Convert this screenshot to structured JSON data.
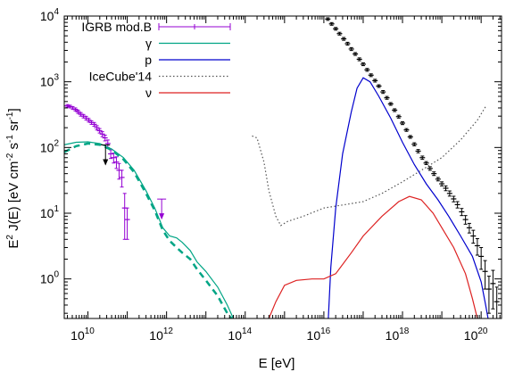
{
  "chart_data": {
    "type": "line",
    "title": "",
    "xlabel": "E  [eV]",
    "ylabel_main": "E",
    "ylabel_sup": "2",
    "ylabel_j": " J(E)  [eV cm",
    "ylabel_cm_exp": "-2",
    "ylabel_s": " s",
    "ylabel_s_exp": "-1",
    "ylabel_sr": " sr",
    "ylabel_sr_exp": "-1",
    "ylabel_close": "]",
    "x_scale": "log",
    "y_scale": "log",
    "xlim": [
      2500000000.0,
      3.3e+20
    ],
    "ylim": [
      0.25,
      10000
    ],
    "legend_position": "top-left",
    "x_ticks": [
      {
        "base": "10",
        "exp": "10",
        "value": 10000000000.0
      },
      {
        "base": "10",
        "exp": "12",
        "value": 1000000000000.0
      },
      {
        "base": "10",
        "exp": "14",
        "value": 100000000000000.0
      },
      {
        "base": "10",
        "exp": "16",
        "value": 1e+16
      },
      {
        "base": "10",
        "exp": "18",
        "value": 1e+18
      },
      {
        "base": "10",
        "exp": "20",
        "value": 1e+20
      }
    ],
    "y_ticks": [
      {
        "base": "10",
        "exp": "0",
        "value": 1
      },
      {
        "base": "10",
        "exp": "1",
        "value": 10
      },
      {
        "base": "10",
        "exp": "2",
        "value": 100
      },
      {
        "base": "10",
        "exp": "3",
        "value": 1000
      },
      {
        "base": "10",
        "exp": "4",
        "value": 10000
      }
    ],
    "series": [
      {
        "name": "IGRB mod.B",
        "color": "#9400d3",
        "style": "errorbars",
        "points": [
          [
            3000000000.0,
            430,
            20
          ],
          [
            3500000000.0,
            420,
            20
          ],
          [
            4100000000.0,
            400,
            20
          ],
          [
            4800000000.0,
            380,
            20
          ],
          [
            5600000000.0,
            350,
            20
          ],
          [
            6600000000.0,
            320,
            20
          ],
          [
            7700000000.0,
            300,
            18
          ],
          [
            9000000000.0,
            280,
            18
          ],
          [
            10500000000.0,
            260,
            16
          ],
          [
            12300000000.0,
            240,
            15
          ],
          [
            14400000000.0,
            225,
            15
          ],
          [
            16900000000.0,
            200,
            15
          ],
          [
            19800000000.0,
            180,
            14
          ],
          [
            23200000000.0,
            160,
            14
          ],
          [
            27200000000.0,
            140,
            14
          ],
          [
            32000000000.0,
            115,
            15
          ],
          [
            38000000000.0,
            80,
            12
          ],
          [
            45000000000.0,
            70,
            12
          ],
          [
            53000000000.0,
            60,
            12
          ],
          [
            62000000000.0,
            45,
            12
          ],
          [
            73000000000.0,
            35,
            10
          ],
          [
            86000000000.0,
            12,
            8
          ],
          [
            100000000000.0,
            8,
            4
          ]
        ]
      },
      {
        "name": "γ",
        "color": "#00a585",
        "style": "solid",
        "points": [
          [
            2500000000.0,
            110
          ],
          [
            5000000000.0,
            120
          ],
          [
            10000000000.0,
            122
          ],
          [
            20000000000.0,
            115
          ],
          [
            40000000000.0,
            95
          ],
          [
            80000000000.0,
            70
          ],
          [
            150000000000.0,
            45
          ],
          [
            300000000000.0,
            22
          ],
          [
            500000000000.0,
            12
          ],
          [
            800000000000.0,
            6
          ],
          [
            1200000000000.0,
            4.5
          ],
          [
            1800000000000.0,
            4.2
          ],
          [
            2500000000000.0,
            3.6
          ],
          [
            4000000000000.0,
            2.7
          ],
          [
            6000000000000.0,
            1.8
          ],
          [
            10000000000000.0,
            1.3
          ],
          [
            20000000000000.0,
            0.75
          ],
          [
            35000000000000.0,
            0.4
          ],
          [
            50000000000000.0,
            0.25
          ]
        ]
      },
      {
        "name": "",
        "color": "#00a585",
        "style": "dashed",
        "points": [
          [
            2500000000.0,
            85
          ],
          [
            5000000000.0,
            105
          ],
          [
            10000000000.0,
            115
          ],
          [
            20000000000.0,
            110
          ],
          [
            40000000000.0,
            92
          ],
          [
            80000000000.0,
            66
          ],
          [
            150000000000.0,
            42
          ],
          [
            300000000000.0,
            20
          ],
          [
            500000000000.0,
            11
          ],
          [
            800000000000.0,
            5.5
          ],
          [
            1200000000000.0,
            3.8
          ],
          [
            1800000000000.0,
            3.0
          ],
          [
            2500000000000.0,
            2.5
          ],
          [
            4000000000000.0,
            2.0
          ],
          [
            6000000000000.0,
            1.4
          ],
          [
            10000000000000.0,
            0.95
          ],
          [
            20000000000000.0,
            0.55
          ],
          [
            35000000000000.0,
            0.3
          ],
          [
            45000000000000.0,
            0.25
          ]
        ]
      },
      {
        "name": "p",
        "color": "#0000cd",
        "style": "solid",
        "points": [
          [
            1.3e+16,
            0.25
          ],
          [
            1.5e+16,
            1.5
          ],
          [
            2e+16,
            12
          ],
          [
            3e+16,
            80
          ],
          [
            5e+16,
            350
          ],
          [
            7e+16,
            800
          ],
          [
            1e+17,
            1150
          ],
          [
            1.5e+17,
            1000
          ],
          [
            2.5e+17,
            600
          ],
          [
            5e+17,
            280
          ],
          [
            1e+18,
            120
          ],
          [
            2e+18,
            55
          ],
          [
            4e+18,
            28
          ],
          [
            8e+18,
            16
          ],
          [
            1.5e+19,
            9
          ],
          [
            3e+19,
            4.5
          ],
          [
            6e+19,
            2.2
          ],
          [
            1e+20,
            0.9
          ],
          [
            1.3e+20,
            0.4
          ],
          [
            1.5e+20,
            0.25
          ]
        ]
      },
      {
        "name": "IceCube'14",
        "color": "#555555",
        "style": "dotted",
        "points": [
          [
            150000000000000.0,
            150
          ],
          [
            200000000000000.0,
            140
          ],
          [
            300000000000000.0,
            60
          ],
          [
            400000000000000.0,
            22
          ],
          [
            600000000000000.0,
            9
          ],
          [
            800000000000000.0,
            6.5
          ],
          [
            1200000000000000.0,
            7.5
          ],
          [
            3000000000000000.0,
            9
          ],
          [
            1e+16,
            12
          ],
          [
            5e+16,
            14
          ],
          [
            1e+17,
            15
          ],
          [
            3e+17,
            20
          ],
          [
            1e+18,
            30
          ],
          [
            3e+18,
            45
          ],
          [
            1e+19,
            70
          ],
          [
            3e+19,
            130
          ],
          [
            8e+19,
            260
          ],
          [
            1.3e+20,
            420
          ]
        ]
      },
      {
        "name": "ν",
        "color": "#dd2222",
        "style": "solid",
        "points": [
          [
            400000000000000.0,
            0.25
          ],
          [
            600000000000000.0,
            0.45
          ],
          [
            1000000000000000.0,
            0.8
          ],
          [
            2000000000000000.0,
            0.95
          ],
          [
            5000000000000000.0,
            1.0
          ],
          [
            1e+16,
            1.0
          ],
          [
            2e+16,
            1.2
          ],
          [
            5e+16,
            2.5
          ],
          [
            1e+17,
            4.5
          ],
          [
            3e+17,
            9
          ],
          [
            8e+17,
            15
          ],
          [
            1.5e+18,
            18
          ],
          [
            3e+18,
            16
          ],
          [
            6e+18,
            10
          ],
          [
            1e+19,
            6
          ],
          [
            2e+19,
            3
          ],
          [
            4e+19,
            1.2
          ],
          [
            6e+19,
            0.5
          ],
          [
            8e+19,
            0.25
          ]
        ]
      },
      {
        "name": "",
        "color": "#000000",
        "style": "errorbars",
        "points": [
          [
            1e+16,
            10500,
            500
          ],
          [
            1.26e+16,
            9000,
            400
          ],
          [
            1.58e+16,
            7600,
            350
          ],
          [
            2e+16,
            6400,
            300
          ],
          [
            2.5e+16,
            5400,
            260
          ],
          [
            3.2e+16,
            4500,
            220
          ],
          [
            4e+16,
            3800,
            190
          ],
          [
            5e+16,
            3150,
            160
          ],
          [
            6.3e+16,
            2650,
            130
          ],
          [
            8e+16,
            2200,
            110
          ],
          [
            1e+17,
            1850,
            90
          ],
          [
            1.26e+17,
            1520,
            75
          ],
          [
            1.58e+17,
            1260,
            60
          ],
          [
            2e+17,
            1040,
            50
          ],
          [
            2.5e+17,
            860,
            40
          ],
          [
            3.2e+17,
            700,
            35
          ],
          [
            4e+17,
            570,
            28
          ],
          [
            5e+17,
            460,
            22
          ],
          [
            6.3e+17,
            370,
            18
          ],
          [
            8e+17,
            295,
            15
          ],
          [
            1e+18,
            235,
            12
          ],
          [
            1.26e+18,
            185,
            9
          ],
          [
            1.58e+18,
            145,
            7
          ],
          [
            2e+18,
            112,
            6
          ],
          [
            2.5e+18,
            88,
            5
          ],
          [
            3.2e+18,
            70,
            4
          ],
          [
            4e+18,
            58,
            3
          ],
          [
            5e+18,
            48,
            3
          ],
          [
            6.3e+18,
            40,
            2.5
          ],
          [
            8e+18,
            33,
            2
          ],
          [
            1e+19,
            28,
            2
          ],
          [
            1.26e+19,
            24,
            2
          ],
          [
            1.58e+19,
            20,
            1.8
          ],
          [
            2e+19,
            16.5,
            1.6
          ],
          [
            2.5e+19,
            13.5,
            1.5
          ],
          [
            3.2e+19,
            10.5,
            1.3
          ],
          [
            4e+19,
            8,
            1.2
          ],
          [
            5e+19,
            6,
            1.0
          ],
          [
            6.3e+19,
            4.5,
            1.0
          ],
          [
            8e+19,
            3.2,
            0.9
          ],
          [
            1e+20,
            2.2,
            0.8
          ],
          [
            1.26e+20,
            1.3,
            0.6
          ],
          [
            1.58e+20,
            0.7,
            0.4
          ],
          [
            2e+20,
            0.85,
            0.5
          ],
          [
            2.5e+20,
            0.45,
            0.3
          ]
        ]
      }
    ],
    "annotations": [
      {
        "type": "upper-limit",
        "x": 28000000000.0,
        "y": 80,
        "color": "#000000"
      },
      {
        "type": "upper-limit",
        "x": 750000000000.0,
        "y": 12,
        "color": "#9400d3"
      }
    ]
  }
}
